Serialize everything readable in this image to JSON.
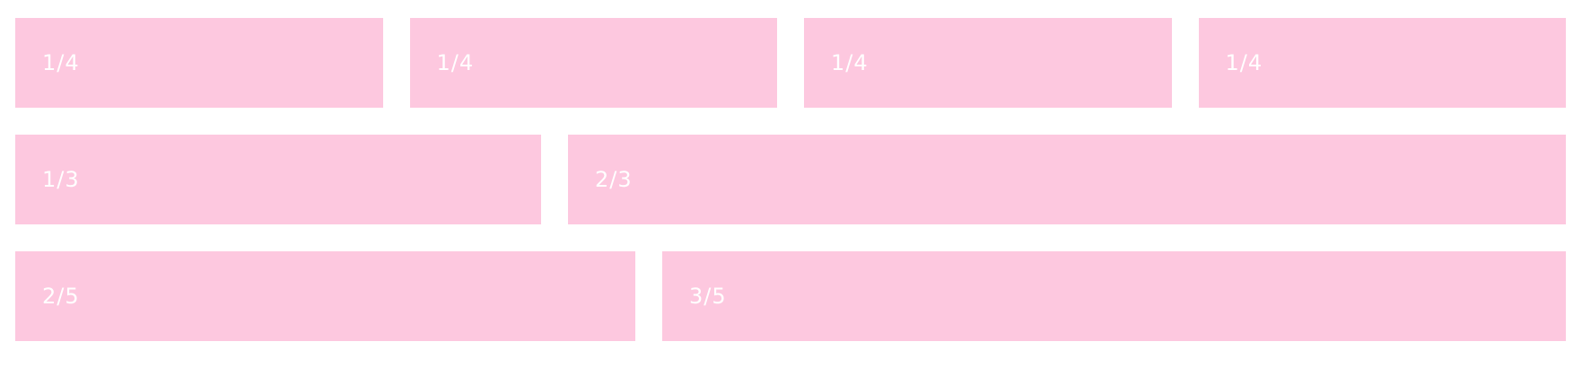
{
  "colors": {
    "background": "#ffffff",
    "cell_fill": "#fdc8df",
    "cell_text": "#ffffff"
  },
  "rows": [
    {
      "cells": [
        {
          "label": "1/4"
        },
        {
          "label": "1/4"
        },
        {
          "label": "1/4"
        },
        {
          "label": "1/4"
        }
      ]
    },
    {
      "cells": [
        {
          "label": "1/3"
        },
        {
          "label": "2/3"
        }
      ]
    },
    {
      "cells": [
        {
          "label": "2/5"
        },
        {
          "label": "3/5"
        }
      ]
    }
  ]
}
